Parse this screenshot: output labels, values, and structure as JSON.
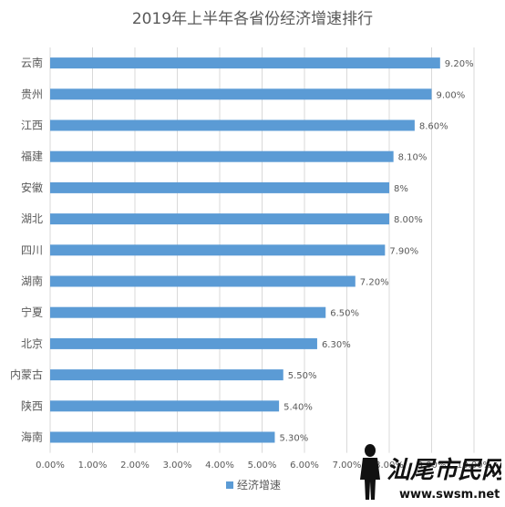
{
  "chart_data": {
    "type": "bar",
    "orientation": "horizontal",
    "title": "2019年上半年各省份经济增速排行",
    "categories": [
      "云南",
      "贵州",
      "江西",
      "福建",
      "安徽",
      "湖北",
      "四川",
      "湖南",
      "宁夏",
      "北京",
      "内蒙古",
      "陕西",
      "海南"
    ],
    "series": [
      {
        "name": "经济增速",
        "values": [
          9.2,
          9.0,
          8.6,
          8.1,
          8.0,
          8.0,
          7.9,
          7.2,
          6.5,
          6.3,
          5.5,
          5.4,
          5.3
        ],
        "data_labels": [
          "9.20%",
          "9.00%",
          "8.60%",
          "8.10%",
          "8%",
          "8.00%",
          "7.90%",
          "7.20%",
          "6.50%",
          "6.30%",
          "5.50%",
          "5.40%",
          "5.30%"
        ],
        "color": "#5b9bd5"
      }
    ],
    "x_ticks": [
      "0.00%",
      "1.00%",
      "2.00%",
      "3.00%",
      "4.00%",
      "5.00%",
      "6.00%",
      "7.00%",
      "8.00%",
      "9.00%",
      "10.00%"
    ],
    "xlim": [
      0,
      10
    ],
    "grid": true,
    "legend_position": "bottom",
    "text_color": "#595959",
    "grid_color": "#d9d9d9"
  },
  "watermark": {
    "main": "汕尾市民网",
    "url": "www.swsm.net"
  }
}
